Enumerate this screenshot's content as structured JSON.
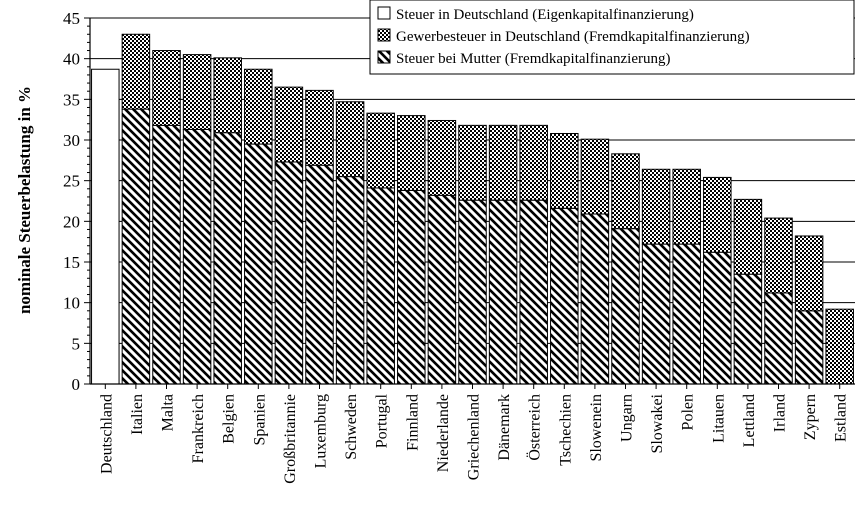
{
  "chart_data": {
    "type": "bar",
    "stacked": true,
    "ylabel": "nominale Steuerbelastung in %",
    "xlabel": "",
    "ylim": [
      0,
      45
    ],
    "yticks": [
      0,
      5,
      10,
      15,
      20,
      25,
      30,
      35,
      40,
      45
    ],
    "grid": "horizontal",
    "legend_position": "top-right",
    "categories": [
      "Deutschland",
      "Italien",
      "Malta",
      "Frankreich",
      "Belgien",
      "Spanien",
      "Großbritannie",
      "Luxemburg",
      "Schweden",
      "Portugal",
      "Finnland",
      "Niederlande",
      "Griechenland",
      "Dänemark",
      "Österreich",
      "Tschechien",
      "Slowenein",
      "Ungarn",
      "Slowakei",
      "Polen",
      "Litauen",
      "Lettland",
      "Irland",
      "Zypern",
      "Estland"
    ],
    "series": [
      {
        "name": "Steuer in Deutschland (Eigenkapitalfinanzierung)",
        "pattern": "white",
        "values": [
          38.7,
          0,
          0,
          0,
          0,
          0,
          0,
          0,
          0,
          0,
          0,
          0,
          0,
          0,
          0,
          0,
          0,
          0,
          0,
          0,
          0,
          0,
          0,
          0,
          0
        ]
      },
      {
        "name": "Steuer bei Mutter (Fremdkapitalfinanzierung)",
        "pattern": "diagonal",
        "values": [
          0,
          33.8,
          31.8,
          31.3,
          30.9,
          29.5,
          27.3,
          26.9,
          25.5,
          24.1,
          23.8,
          23.2,
          22.6,
          22.6,
          22.6,
          21.6,
          20.9,
          19.1,
          17.2,
          17.2,
          16.2,
          13.5,
          11.2,
          9.0,
          0
        ]
      },
      {
        "name": "Gewerbesteuer in Deutschland (Fremdkapitalfinanzierung)",
        "pattern": "checker",
        "values": [
          0,
          9.2,
          9.2,
          9.2,
          9.2,
          9.2,
          9.2,
          9.2,
          9.2,
          9.2,
          9.2,
          9.2,
          9.2,
          9.2,
          9.2,
          9.2,
          9.2,
          9.2,
          9.2,
          9.2,
          9.2,
          9.2,
          9.2,
          9.2,
          9.2
        ]
      }
    ]
  },
  "legend": [
    {
      "label": "Steuer in Deutschland (Eigenkapitalfinanzierung)",
      "pattern": "white"
    },
    {
      "label": "Gewerbesteuer in Deutschland (Fremdkapitalfinanzierung)",
      "pattern": "checker"
    },
    {
      "label": "Steuer bei Mutter (Fremdkapitalfinanzierung)",
      "pattern": "diagonal"
    }
  ]
}
